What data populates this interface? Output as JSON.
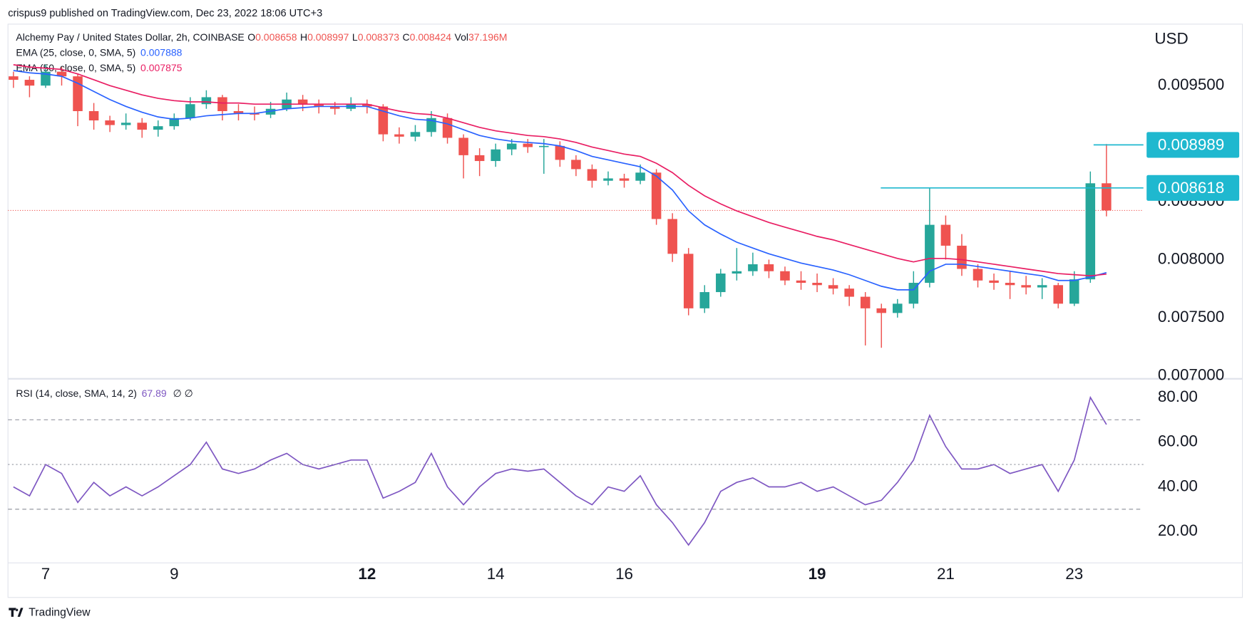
{
  "header": {
    "published": "crispus9 published on TradingView.com, Dec 23, 2022 18:06 UTC+3"
  },
  "chart_data": {
    "type": "candlestick",
    "title": "Alchemy Pay / United States Dollar, 2h, COINBASE",
    "currency": "USD",
    "ohlc_labels": [
      "O",
      "H",
      "L",
      "C"
    ],
    "volume_label": "Vol",
    "volume": "37.196M",
    "up_color": "#26a69a",
    "down_color": "#ef5350",
    "candles": [
      [
        0.00958,
        0.00962,
        0.00948,
        0.00955
      ],
      [
        0.00955,
        0.00958,
        0.0094,
        0.0095
      ],
      [
        0.0095,
        0.00968,
        0.00948,
        0.00962
      ],
      [
        0.00962,
        0.00966,
        0.0095,
        0.00958
      ],
      [
        0.00958,
        0.0096,
        0.00915,
        0.00928
      ],
      [
        0.00928,
        0.00935,
        0.00912,
        0.0092
      ],
      [
        0.0092,
        0.00924,
        0.0091,
        0.00916
      ],
      [
        0.00916,
        0.00926,
        0.00912,
        0.00918
      ],
      [
        0.00918,
        0.00922,
        0.00905,
        0.00912
      ],
      [
        0.00912,
        0.0092,
        0.00906,
        0.00915
      ],
      [
        0.00915,
        0.00926,
        0.00912,
        0.00922
      ],
      [
        0.00922,
        0.0094,
        0.0092,
        0.00934
      ],
      [
        0.00934,
        0.00946,
        0.0093,
        0.0094
      ],
      [
        0.0094,
        0.00942,
        0.0092,
        0.00928
      ],
      [
        0.00928,
        0.00934,
        0.0092,
        0.00926
      ],
      [
        0.00926,
        0.00932,
        0.0092,
        0.00925
      ],
      [
        0.00925,
        0.00936,
        0.00922,
        0.0093
      ],
      [
        0.0093,
        0.00944,
        0.00928,
        0.00938
      ],
      [
        0.00938,
        0.00942,
        0.00928,
        0.00934
      ],
      [
        0.00934,
        0.00938,
        0.00926,
        0.00932
      ],
      [
        0.00932,
        0.00936,
        0.00925,
        0.0093
      ],
      [
        0.0093,
        0.0094,
        0.00928,
        0.00934
      ],
      [
        0.00934,
        0.00938,
        0.00926,
        0.00932
      ],
      [
        0.00932,
        0.00934,
        0.00902,
        0.00908
      ],
      [
        0.00908,
        0.00914,
        0.009,
        0.00906
      ],
      [
        0.00906,
        0.00916,
        0.00902,
        0.0091
      ],
      [
        0.0091,
        0.00928,
        0.00906,
        0.00922
      ],
      [
        0.00922,
        0.00926,
        0.009,
        0.00905
      ],
      [
        0.00905,
        0.00908,
        0.0087,
        0.0089
      ],
      [
        0.0089,
        0.00896,
        0.00872,
        0.00885
      ],
      [
        0.00885,
        0.009,
        0.0088,
        0.00895
      ],
      [
        0.00895,
        0.00904,
        0.0089,
        0.009
      ],
      [
        0.009,
        0.00904,
        0.00892,
        0.00897
      ],
      [
        0.00897,
        0.00904,
        0.00874,
        0.00898
      ],
      [
        0.00898,
        0.00902,
        0.0088,
        0.00886
      ],
      [
        0.00886,
        0.0089,
        0.00872,
        0.00878
      ],
      [
        0.00878,
        0.00882,
        0.00862,
        0.00868
      ],
      [
        0.00868,
        0.00876,
        0.00864,
        0.0087
      ],
      [
        0.0087,
        0.00874,
        0.00862,
        0.00868
      ],
      [
        0.00868,
        0.00882,
        0.00865,
        0.00875
      ],
      [
        0.00875,
        0.00878,
        0.0083,
        0.00835
      ],
      [
        0.00835,
        0.0084,
        0.00798,
        0.00805
      ],
      [
        0.00805,
        0.0081,
        0.00752,
        0.00758
      ],
      [
        0.00758,
        0.00778,
        0.00754,
        0.00772
      ],
      [
        0.00772,
        0.00792,
        0.00768,
        0.00788
      ],
      [
        0.00788,
        0.0081,
        0.00782,
        0.0079
      ],
      [
        0.0079,
        0.00806,
        0.00786,
        0.00796
      ],
      [
        0.00796,
        0.008,
        0.00784,
        0.0079
      ],
      [
        0.0079,
        0.00794,
        0.00778,
        0.00782
      ],
      [
        0.00782,
        0.0079,
        0.00774,
        0.0078
      ],
      [
        0.0078,
        0.00788,
        0.00772,
        0.00778
      ],
      [
        0.00778,
        0.00784,
        0.0077,
        0.00775
      ],
      [
        0.00775,
        0.00778,
        0.0076,
        0.00768
      ],
      [
        0.00768,
        0.00772,
        0.00726,
        0.00758
      ],
      [
        0.00758,
        0.00762,
        0.00724,
        0.00754
      ],
      [
        0.00754,
        0.00766,
        0.0075,
        0.00762
      ],
      [
        0.00762,
        0.0079,
        0.00758,
        0.0078
      ],
      [
        0.0078,
        0.00862,
        0.00776,
        0.0083
      ],
      [
        0.0083,
        0.00838,
        0.008,
        0.00812
      ],
      [
        0.00812,
        0.00822,
        0.00786,
        0.00792
      ],
      [
        0.00792,
        0.00796,
        0.00776,
        0.00782
      ],
      [
        0.00782,
        0.00788,
        0.00774,
        0.0078
      ],
      [
        0.0078,
        0.0079,
        0.00766,
        0.00778
      ],
      [
        0.00778,
        0.00786,
        0.0077,
        0.00776
      ],
      [
        0.00776,
        0.00784,
        0.00766,
        0.00778
      ],
      [
        0.00778,
        0.0078,
        0.00758,
        0.00762
      ],
      [
        0.00762,
        0.0079,
        0.0076,
        0.00783
      ],
      [
        0.00783,
        0.00876,
        0.0078,
        0.008658
      ],
      [
        0.008658,
        0.008997,
        0.008373,
        0.008424
      ]
    ],
    "xlim": [
      -0.34,
      70.3
    ],
    "xticks": [
      {
        "value": 2,
        "label": "7"
      },
      {
        "value": 10,
        "label": "9"
      },
      {
        "value": 22,
        "label": "12",
        "bold": true
      },
      {
        "value": 30,
        "label": "14"
      },
      {
        "value": 38,
        "label": "16"
      },
      {
        "value": 50,
        "label": "19",
        "bold": true
      },
      {
        "value": 58,
        "label": "21"
      },
      {
        "value": 66,
        "label": "23"
      }
    ],
    "ylim": [
      0.00698,
      0.01003
    ],
    "yticks": [
      {
        "value": 0.0095,
        "label": "0.009500"
      },
      {
        "value": 0.0085,
        "label": "0.008500"
      },
      {
        "value": 0.008,
        "label": "0.008000"
      },
      {
        "value": 0.0075,
        "label": "0.007500"
      },
      {
        "value": 0.007,
        "label": "0.007000"
      }
    ],
    "series": [
      {
        "name": "EMA (25, close, 0, SMA, 5)",
        "color": "#2962ff",
        "values": [
          0.00963,
          0.00961,
          0.0096,
          0.00958,
          0.00952,
          0.00945,
          0.00938,
          0.00932,
          0.00927,
          0.00923,
          0.00921,
          0.00922,
          0.00924,
          0.00925,
          0.00926,
          0.00926,
          0.00928,
          0.0093,
          0.00931,
          0.00932,
          0.00932,
          0.00932,
          0.00932,
          0.00928,
          0.00924,
          0.00921,
          0.0092,
          0.00917,
          0.00912,
          0.00907,
          0.00904,
          0.00902,
          0.00901,
          0.009,
          0.00898,
          0.00894,
          0.00889,
          0.00886,
          0.00883,
          0.0088,
          0.00872,
          0.0086,
          0.00842,
          0.0083,
          0.00822,
          0.00815,
          0.0081,
          0.00805,
          0.00801,
          0.00797,
          0.00794,
          0.00791,
          0.00787,
          0.00782,
          0.00777,
          0.00774,
          0.00774,
          0.0079,
          0.00796,
          0.00796,
          0.00794,
          0.00792,
          0.0079,
          0.00788,
          0.00786,
          0.00782,
          0.00782,
          0.00785,
          0.007888
        ]
      },
      {
        "name": "EMA (50, close, 0, SMA, 5)",
        "color": "#e91e63",
        "values": [
          0.00968,
          0.00966,
          0.00965,
          0.00964,
          0.0096,
          0.00955,
          0.0095,
          0.00946,
          0.00942,
          0.00939,
          0.00937,
          0.00936,
          0.00936,
          0.00935,
          0.00935,
          0.00934,
          0.00934,
          0.00934,
          0.00934,
          0.00934,
          0.00934,
          0.00934,
          0.00934,
          0.00931,
          0.00928,
          0.00926,
          0.00925,
          0.00922,
          0.00918,
          0.00914,
          0.00911,
          0.00909,
          0.00907,
          0.00906,
          0.00904,
          0.00901,
          0.00897,
          0.00894,
          0.00891,
          0.00889,
          0.00883,
          0.00875,
          0.00864,
          0.00855,
          0.00848,
          0.00842,
          0.00837,
          0.00832,
          0.00828,
          0.00824,
          0.0082,
          0.00817,
          0.00813,
          0.00809,
          0.00805,
          0.00801,
          0.00798,
          0.00801,
          0.00801,
          0.008,
          0.00798,
          0.00796,
          0.00794,
          0.00792,
          0.0079,
          0.00788,
          0.00787,
          0.00786,
          0.007875
        ]
      }
    ],
    "horizontal_lines": [
      {
        "y": 0.008989,
        "x": 67.2
      },
      {
        "y": 0.008618,
        "x": 53.96
      }
    ],
    "annotation_color": "#1fb8cf",
    "rsi": {
      "name": "RSI (14, close, SMA, 14, 2)",
      "color": "#7e57c2",
      "extra": "∅ ∅",
      "values": [
        40,
        36,
        50,
        46,
        33,
        42,
        36,
        40,
        36,
        40,
        45,
        50,
        60,
        48,
        46,
        48,
        52,
        55,
        50,
        48,
        50,
        52,
        52,
        35,
        38,
        42,
        55,
        40,
        32,
        40,
        46,
        48,
        47,
        48,
        42,
        36,
        32,
        40,
        38,
        45,
        32,
        24,
        14,
        24,
        38,
        42,
        44,
        40,
        40,
        42,
        38,
        40,
        36,
        32,
        34,
        42,
        52,
        72,
        58,
        48,
        48,
        50,
        46,
        48,
        50,
        38,
        52,
        80,
        67.89
      ],
      "ylim": [
        6,
        88
      ],
      "yticks": [
        {
          "value": 80,
          "label": "80.00"
        },
        {
          "value": 60,
          "label": "60.00"
        },
        {
          "value": 40,
          "label": "40.00"
        },
        {
          "value": 20,
          "label": "20.00"
        }
      ],
      "bands": [
        70,
        50,
        30
      ]
    }
  },
  "footer": {
    "brand": "TradingView"
  }
}
